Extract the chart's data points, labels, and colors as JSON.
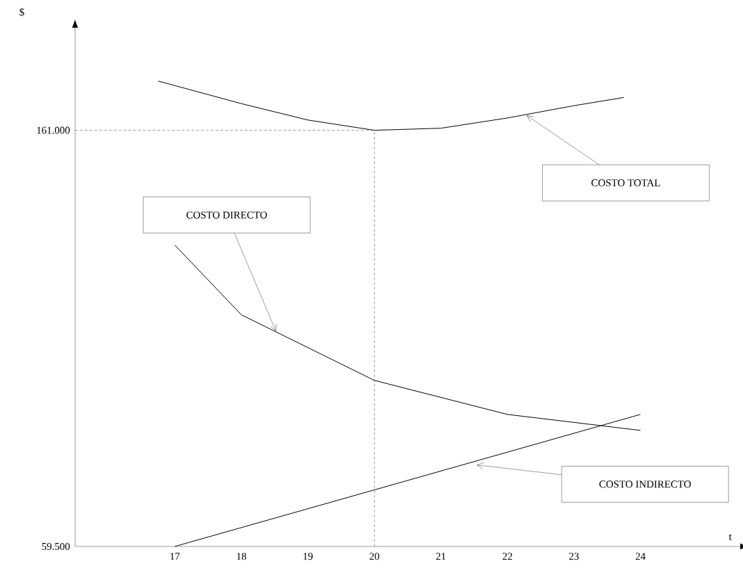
{
  "chart_data": {
    "type": "line",
    "xlabel": "t",
    "ylabel": "$",
    "xlim": [
      15.5,
      25.5
    ],
    "xticks": [
      17,
      18,
      19,
      20,
      21,
      22,
      23,
      24
    ],
    "ylim": [
      59500,
      186000
    ],
    "yticks": [
      {
        "value": 59500,
        "label": "59.500"
      },
      {
        "value": 161000,
        "label": "161.000"
      }
    ],
    "series": [
      {
        "color": "#000000",
        "x": [
          16.75,
          18,
          19,
          20,
          21,
          22,
          23,
          23.75
        ],
        "values": [
          173000,
          167500,
          163500,
          161000,
          161500,
          164000,
          167000,
          169000
        ]
      },
      {
        "color": "#000000",
        "x": [
          17,
          18,
          20,
          22,
          24
        ],
        "values": [
          133000,
          116000,
          100000,
          91700,
          87800
        ]
      },
      {
        "color": "#000000",
        "x": [
          17,
          24
        ],
        "values": [
          59500,
          91700
        ]
      }
    ],
    "ref_lines": [
      {
        "axis": "y",
        "value": 161000,
        "line_style": "dashed"
      },
      {
        "axis": "x",
        "value": 20,
        "line_style": "dashed"
      }
    ],
    "annotations": [
      "COSTO TOTAL",
      "COSTO DIRECTO",
      "COSTO INDIRECTO"
    ],
    "marker": "none",
    "line_style": "solid"
  }
}
